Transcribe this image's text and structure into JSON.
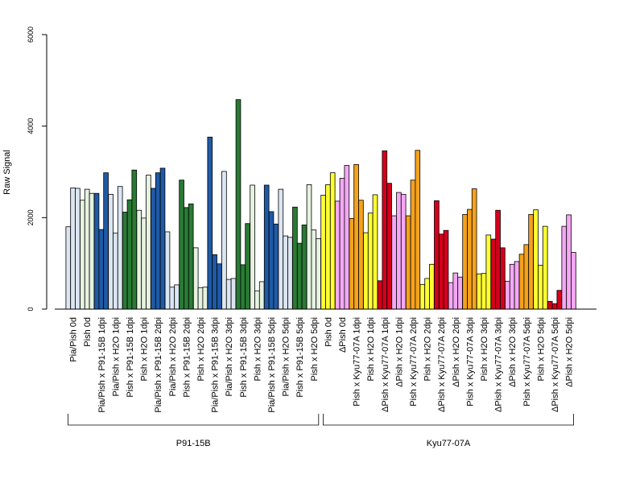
{
  "chart_data": {
    "type": "bar",
    "xlabel": "",
    "ylabel": "Raw Signal",
    "ylim": [
      0,
      6000
    ],
    "yticks": [
      0,
      2000,
      4000,
      6000
    ],
    "ytick_labels": [
      "0",
      "2000",
      "4000",
      "6000"
    ],
    "categories": [
      "Pia/Pish 0d",
      "Pish 0d",
      "Pia/Pish x P91-15B 1dpi",
      "Pia/Pish x H2O 1dpi",
      "Pish x P91-15B 1dpi",
      "Pish x H2O 1dpi",
      "Pia/Pish x P91-15B 2dpi",
      "Pia/Pish x H2O 2dpi",
      "Pish x P91-15B 2dpi",
      "Pish x H2O 2dpi",
      "Pia/Pish x P91-15B 3dpi",
      "Pia/Pish x H2O 3dpi",
      "Pish x P91-15B 3dpi",
      "Pish x H2O 3dpi",
      "Pia/Pish x P91-15B 5dpi",
      "Pia/Pish x H2O 5dpi",
      "Pish x P91-15B 5dpi",
      "Pish x H2O 5dpi",
      "Pish 0d",
      "ΔPish 0d",
      "Pish x Kyu77-07A 1dpi",
      "Pish x H2O 1dpi",
      "ΔPish x Kyu77-07A 1dpi",
      "ΔPish x H2O 1dpi",
      "Pish x Kyu77-07A 2dpi",
      "Pish x H2O 2dpi",
      "ΔPish x Kyu77-07A 2dpi",
      "ΔPish x H2O 2dpi",
      "Pish x Kyu77-07A 3dpi",
      "Pish x H2O 3dpi",
      "ΔPish x Kyu77-07A 3dpi",
      "ΔPish x H2O 3dpi",
      "Pish x Kyu77-07A 5dpi",
      "Pish x H2O 5dpi",
      "ΔPish x Kyu77-07A 5dpi",
      "ΔPish x H2O 5dpi"
    ],
    "colors": [
      "#dce6f2",
      "#e6f2e0",
      "#1f5aa6",
      "#dce6f2",
      "#2a7a34",
      "#e6f2e0",
      "#1f5aa6",
      "#dce6f2",
      "#2a7a34",
      "#e6f2e0",
      "#1f5aa6",
      "#dce6f2",
      "#2a7a34",
      "#e6f2e0",
      "#1f5aa6",
      "#dce6f2",
      "#2a7a34",
      "#e6f2e0",
      "#ffff33",
      "#f4a8f4",
      "#f5a21b",
      "#ffff33",
      "#d4001c",
      "#f4a8f4",
      "#f5a21b",
      "#ffff33",
      "#d4001c",
      "#f4a8f4",
      "#f5a21b",
      "#ffff33",
      "#d4001c",
      "#f4a8f4",
      "#f5a21b",
      "#ffff33",
      "#d4001c",
      "#f4a8f4"
    ],
    "values": [
      [
        1800,
        2650,
        2640
      ],
      [
        2380,
        2620,
        2530
      ],
      [
        2530,
        1740,
        2980
      ],
      [
        2510,
        1660,
        2680
      ],
      [
        2120,
        2390,
        3040
      ],
      [
        2160,
        1990,
        2930
      ],
      [
        2640,
        2980,
        3080
      ],
      [
        1690,
        480,
        530
      ],
      [
        2820,
        2220,
        2300
      ],
      [
        1340,
        470,
        480
      ],
      [
        3760,
        1190,
        990
      ],
      [
        3010,
        650,
        670
      ],
      [
        4580,
        970,
        1870
      ],
      [
        2710,
        400,
        600
      ],
      [
        2710,
        2130,
        1860
      ],
      [
        2620,
        1600,
        1570
      ],
      [
        2230,
        1440,
        1840
      ],
      [
        2720,
        1730,
        1540
      ],
      [
        2490,
        2720,
        2980
      ],
      [
        2360,
        2860,
        3140
      ],
      [
        1980,
        3160,
        2380
      ],
      [
        1670,
        2100,
        2500
      ],
      [
        620,
        3460,
        2750
      ],
      [
        2040,
        2550,
        2510
      ],
      [
        2040,
        2820,
        3470
      ],
      [
        540,
        670,
        980
      ],
      [
        2370,
        1640,
        1720
      ],
      [
        580,
        790,
        700
      ],
      [
        2070,
        2180,
        2630
      ],
      [
        770,
        780,
        1620
      ],
      [
        1530,
        2160,
        1340
      ],
      [
        610,
        980,
        1040
      ],
      [
        1200,
        1410,
        2070
      ],
      [
        2170,
        960,
        1810
      ],
      [
        170,
        120,
        410
      ],
      [
        1810,
        2060,
        1240
      ]
    ],
    "groups": [
      {
        "label": "P91-15B",
        "start": 0,
        "end": 17
      },
      {
        "label": "Kyu77-07A",
        "start": 18,
        "end": 35
      }
    ],
    "grid": false,
    "legend": "none"
  }
}
